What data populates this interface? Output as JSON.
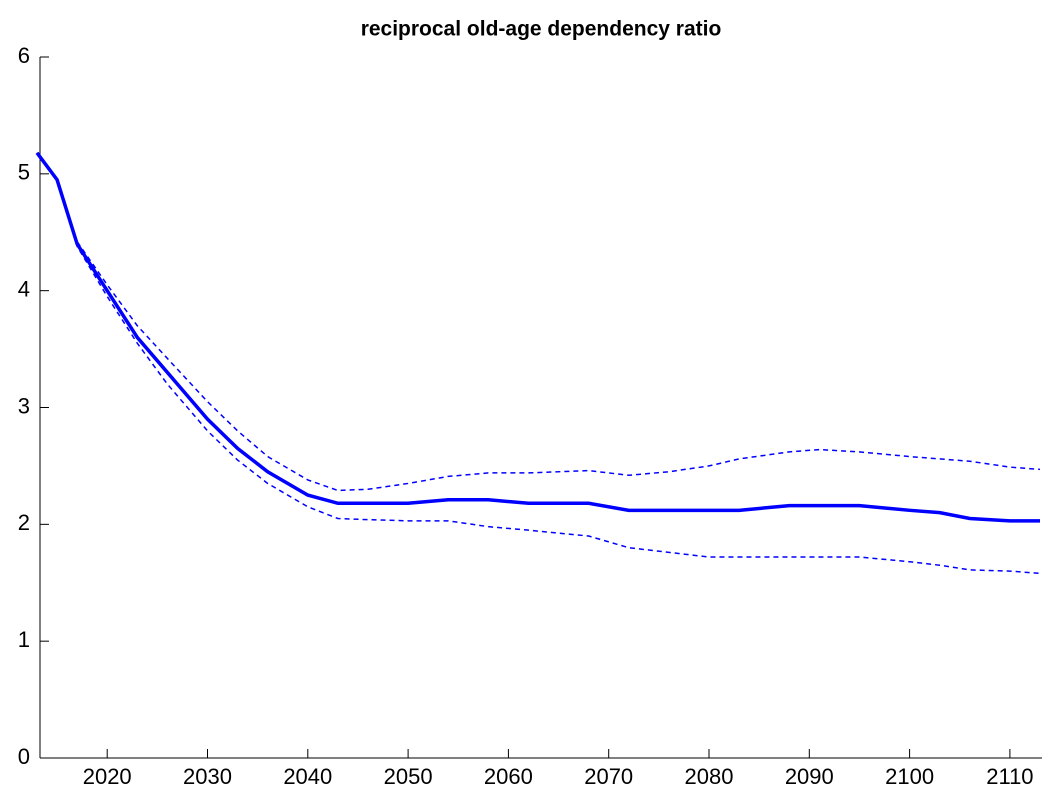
{
  "chart_data": {
    "type": "line",
    "title": "reciprocal old-age dependency ratio",
    "x": [
      2013,
      2015,
      2017,
      2020,
      2023,
      2026,
      2030,
      2033,
      2036,
      2040,
      2043,
      2046,
      2050,
      2054,
      2058,
      2062,
      2068,
      2072,
      2076,
      2080,
      2083,
      2088,
      2091,
      2095,
      2100,
      2103,
      2106,
      2110,
      2113
    ],
    "series": [
      {
        "color": "#0000ff",
        "style": "solid",
        "width": 3.5,
        "values": [
          5.18,
          4.95,
          4.4,
          4.0,
          3.6,
          3.3,
          2.9,
          2.65,
          2.45,
          2.25,
          2.18,
          2.18,
          2.18,
          2.21,
          2.21,
          2.18,
          2.18,
          2.12,
          2.12,
          2.12,
          2.12,
          2.16,
          2.16,
          2.16,
          2.12,
          2.1,
          2.05,
          2.03,
          2.03
        ]
      },
      {
        "color": "#0000ff",
        "style": "dashed",
        "width": 1.5,
        "values": [
          5.18,
          4.95,
          4.42,
          4.05,
          3.7,
          3.42,
          3.05,
          2.8,
          2.58,
          2.38,
          2.29,
          2.3,
          2.35,
          2.41,
          2.44,
          2.44,
          2.46,
          2.42,
          2.45,
          2.5,
          2.56,
          2.62,
          2.64,
          2.62,
          2.58,
          2.56,
          2.54,
          2.49,
          2.47
        ]
      },
      {
        "color": "#0000ff",
        "style": "dashed",
        "width": 1.5,
        "values": [
          5.18,
          4.95,
          4.38,
          3.95,
          3.55,
          3.2,
          2.8,
          2.55,
          2.35,
          2.15,
          2.05,
          2.04,
          2.03,
          2.03,
          1.98,
          1.95,
          1.9,
          1.8,
          1.76,
          1.72,
          1.72,
          1.72,
          1.72,
          1.72,
          1.68,
          1.65,
          1.61,
          1.6,
          1.58
        ]
      }
    ],
    "xlim": [
      2013.3,
      2113.2
    ],
    "xticks": [
      2020,
      2030,
      2040,
      2050,
      2060,
      2070,
      2080,
      2090,
      2100,
      2110
    ],
    "ylim": [
      0,
      6
    ],
    "yticks": [
      0,
      1,
      2,
      3,
      4,
      5,
      6
    ],
    "grid": false
  }
}
